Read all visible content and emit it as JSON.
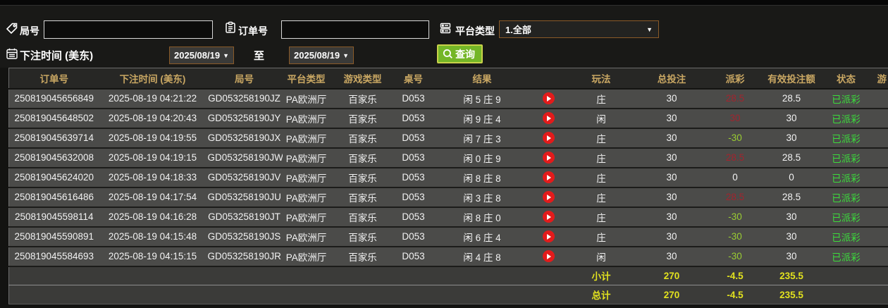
{
  "filters": {
    "game_no": {
      "label": "局号",
      "value": ""
    },
    "order_no": {
      "label": "订单号",
      "value": ""
    },
    "platform_type": {
      "label": "平台类型",
      "value": "1.全部"
    },
    "bet_time": {
      "label": "下注时间 (美东)",
      "from": "2025/08/19",
      "between_label": "至",
      "to": "2025/08/19"
    },
    "search_label": "查询"
  },
  "table": {
    "columns": [
      "订单号",
      "下注时间 (美东)",
      "局号",
      "平台类型",
      "游戏类型",
      "桌号",
      "结果",
      "",
      "玩法",
      "总投注",
      "派彩",
      "有效投注额",
      "状态",
      "游"
    ],
    "rows": [
      {
        "order_no": "250819045656849",
        "bet_time": "2025-08-19 04:21:22",
        "game_no": "GD053258190JZ",
        "platform": "PA欧洲厅",
        "game_type": "百家乐",
        "table_no": "D053",
        "result": "闲 5 庄 9",
        "play_type": "庄",
        "total_bet": "30",
        "payout": "28.5",
        "valid_bet": "28.5",
        "status": "已派彩"
      },
      {
        "order_no": "250819045648502",
        "bet_time": "2025-08-19 04:20:43",
        "game_no": "GD053258190JY",
        "platform": "PA欧洲厅",
        "game_type": "百家乐",
        "table_no": "D053",
        "result": "闲 9 庄 4",
        "play_type": "闲",
        "total_bet": "30",
        "payout": "30",
        "valid_bet": "30",
        "status": "已派彩"
      },
      {
        "order_no": "250819045639714",
        "bet_time": "2025-08-19 04:19:55",
        "game_no": "GD053258190JX",
        "platform": "PA欧洲厅",
        "game_type": "百家乐",
        "table_no": "D053",
        "result": "闲 7 庄 3",
        "play_type": "庄",
        "total_bet": "30",
        "payout": "-30",
        "valid_bet": "30",
        "status": "已派彩"
      },
      {
        "order_no": "250819045632008",
        "bet_time": "2025-08-19 04:19:15",
        "game_no": "GD053258190JW",
        "platform": "PA欧洲厅",
        "game_type": "百家乐",
        "table_no": "D053",
        "result": "闲 0 庄 9",
        "play_type": "庄",
        "total_bet": "30",
        "payout": "28.5",
        "valid_bet": "28.5",
        "status": "已派彩"
      },
      {
        "order_no": "250819045624020",
        "bet_time": "2025-08-19 04:18:33",
        "game_no": "GD053258190JV",
        "platform": "PA欧洲厅",
        "game_type": "百家乐",
        "table_no": "D053",
        "result": "闲 8 庄 8",
        "play_type": "庄",
        "total_bet": "30",
        "payout": "0",
        "valid_bet": "0",
        "status": "已派彩"
      },
      {
        "order_no": "250819045616486",
        "bet_time": "2025-08-19 04:17:54",
        "game_no": "GD053258190JU",
        "platform": "PA欧洲厅",
        "game_type": "百家乐",
        "table_no": "D053",
        "result": "闲 3 庄 8",
        "play_type": "庄",
        "total_bet": "30",
        "payout": "28.5",
        "valid_bet": "28.5",
        "status": "已派彩"
      },
      {
        "order_no": "250819045598114",
        "bet_time": "2025-08-19 04:16:28",
        "game_no": "GD053258190JT",
        "platform": "PA欧洲厅",
        "game_type": "百家乐",
        "table_no": "D053",
        "result": "闲 8 庄 0",
        "play_type": "庄",
        "total_bet": "30",
        "payout": "-30",
        "valid_bet": "30",
        "status": "已派彩"
      },
      {
        "order_no": "250819045590891",
        "bet_time": "2025-08-19 04:15:48",
        "game_no": "GD053258190JS",
        "platform": "PA欧洲厅",
        "game_type": "百家乐",
        "table_no": "D053",
        "result": "闲 6 庄 4",
        "play_type": "庄",
        "total_bet": "30",
        "payout": "-30",
        "valid_bet": "30",
        "status": "已派彩"
      },
      {
        "order_no": "250819045584693",
        "bet_time": "2025-08-19 04:15:15",
        "game_no": "GD053258190JR",
        "platform": "PA欧洲厅",
        "game_type": "百家乐",
        "table_no": "D053",
        "result": "闲 4 庄 8",
        "play_type": "闲",
        "total_bet": "30",
        "payout": "-30",
        "valid_bet": "30",
        "status": "已派彩"
      }
    ],
    "summary": [
      {
        "label": "小计",
        "total_bet": "270",
        "payout": "-4.5",
        "valid_bet": "235.5"
      },
      {
        "label": "总计",
        "total_bet": "270",
        "payout": "-4.5",
        "valid_bet": "235.5"
      }
    ]
  },
  "colors": {
    "header_gold": "#c9a763",
    "button_green": "#74b627",
    "payout_win_red": "#a2242e",
    "payout_loss_green": "#9acd32",
    "status_paid_green": "#3cdc3c",
    "summary_yellow": "#e2e21e",
    "select_border_brown": "#8a5a28"
  }
}
